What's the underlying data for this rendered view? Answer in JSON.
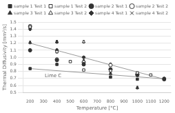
{
  "chart_data": {
    "type": "scatter",
    "xlabel": "Temperature [°C]",
    "ylabel": "Thermal Diffusivity [mm²/s]",
    "xlim": [
      150,
      1250
    ],
    "ylim": [
      0.5,
      1.5
    ],
    "xticks": [
      200,
      300,
      400,
      500,
      600,
      700,
      800,
      900,
      1000,
      1100,
      1200
    ],
    "yticks": [
      0.5,
      0.6,
      0.7,
      0.8,
      0.9,
      {
        "value": 1.0,
        "label": "1.0"
      },
      1.1,
      1.2,
      1.3,
      1.4,
      1.5
    ],
    "grid": "y",
    "legend": "upper right",
    "annotations": [
      {
        "text": "Lime C",
        "x": 310,
        "y": 0.715
      }
    ],
    "series": [
      {
        "type": "line",
        "color": "#999999",
        "x": [
          200,
          1200
        ],
        "values": [
          0.84,
          0.695
        ]
      },
      {
        "type": "line",
        "color": "#999999",
        "x": [
          200,
          1200
        ],
        "values": [
          1.2,
          0.69
        ]
      },
      {
        "name": "sample 1 Test 1",
        "marker": "square",
        "color": "#333333",
        "x": [
          200,
          400,
          600,
          800,
          1000,
          1200
        ],
        "values": [
          0.84,
          0.9,
          0.91,
          0.72,
          0.69,
          0.7
        ],
        "errors": [
          0.01,
          0.01,
          0.01,
          0.01,
          0.01,
          0.01
        ]
      },
      {
        "name": "sample 1 Test 2",
        "marker": "open_square",
        "color": "#333333",
        "x": [
          200,
          400,
          500,
          600,
          800,
          1000,
          1100
        ],
        "values": [
          1.43,
          1.08,
          0.94,
          0.82,
          0.81,
          0.78,
          0.75
        ],
        "errors": [
          0.02,
          0.02,
          0.01,
          0.01,
          0.01,
          0.01,
          0.01
        ]
      },
      {
        "name": "sample 2 Test 1",
        "marker": "circle",
        "color": "#333333",
        "x": [
          200,
          400,
          600,
          800,
          1000,
          1200
        ],
        "values": [
          1.1,
          0.96,
          0.9,
          0.83,
          0.75,
          0.69
        ],
        "errors": [
          0.02,
          0.02,
          0.01,
          0.01,
          0.01,
          0.01
        ]
      },
      {
        "name": "sample 2 Test 2",
        "marker": "open_circle",
        "color": "#333333",
        "x": [
          200,
          400,
          600,
          800,
          1000
        ],
        "values": [
          1.44,
          0.97,
          0.93,
          0.89,
          0.76
        ],
        "errors": [
          0.02,
          0.02,
          0.01,
          0.01,
          0.01
        ]
      },
      {
        "name": "sample 3 Test 1",
        "marker": "triangle",
        "color": "#333333",
        "x": [
          200,
          400,
          600,
          800,
          1000,
          1200
        ],
        "values": [
          1.21,
          1.22,
          0.95,
          0.77,
          0.57,
          0.69
        ],
        "errors": [
          0.02,
          0.02,
          0.02,
          0.02,
          0.02,
          0.02
        ]
      },
      {
        "name": "sample 3 Test 2",
        "marker": "open_triangle",
        "color": "#333333",
        "x": [
          200,
          400,
          600,
          800,
          1000,
          1200
        ],
        "values": [
          1.44,
          1.22,
          1.22,
          0.9,
          0.77,
          0.69
        ],
        "errors": [
          0.02,
          0.02,
          0.02,
          0.02,
          0.02,
          0.02
        ]
      },
      {
        "name": "sample 4 Test 1",
        "marker": "diamond",
        "color": "#333333",
        "x": [
          200,
          400,
          600,
          800,
          1000,
          1200
        ],
        "values": [
          1.4,
          1.1,
          1.0,
          0.83,
          0.75,
          0.7
        ],
        "errors": [
          0.02,
          0.02,
          0.01,
          0.01,
          0.01,
          0.01
        ]
      },
      {
        "name": "sample 4 Test 2",
        "marker": "x",
        "color": "#333333",
        "x": [
          200,
          400,
          600,
          800,
          1000,
          1200
        ],
        "values": [
          1.44,
          1.1,
          1.0,
          0.84,
          0.75,
          0.7
        ],
        "errors": [
          0.02,
          0.02,
          0.01,
          0.01,
          0.01,
          0.01
        ]
      }
    ]
  }
}
